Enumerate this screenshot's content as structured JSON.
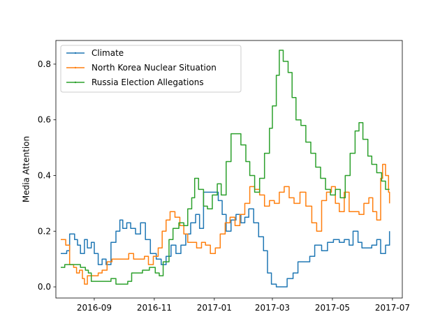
{
  "chart_data": {
    "type": "line",
    "title": "",
    "xlabel": "",
    "ylabel": "Media Attention",
    "x_range": [
      "2016-07-24",
      "2017-07-11"
    ],
    "ylim": [
      -0.04,
      0.885
    ],
    "x_ticks": [
      {
        "date": "2016-09-01",
        "label": "2016-09"
      },
      {
        "date": "2016-11-01",
        "label": "2016-11"
      },
      {
        "date": "2017-01-01",
        "label": "2017-01"
      },
      {
        "date": "2017-03-01",
        "label": "2017-03"
      },
      {
        "date": "2017-05-01",
        "label": "2017-05"
      },
      {
        "date": "2017-07-01",
        "label": "2017-07"
      }
    ],
    "y_ticks": [
      {
        "value": 0.0,
        "label": "0.0"
      },
      {
        "value": 0.2,
        "label": "0.2"
      },
      {
        "value": 0.4,
        "label": "0.4"
      },
      {
        "value": 0.6,
        "label": "0.6"
      },
      {
        "value": 0.8,
        "label": "0.8"
      }
    ],
    "grid": false,
    "legend_position": "top-left",
    "series": [
      {
        "name": "Climate",
        "color": "#1f77b4",
        "points": [
          [
            "2016-07-29",
            0.12
          ],
          [
            "2016-08-04",
            0.13
          ],
          [
            "2016-08-07",
            0.19
          ],
          [
            "2016-08-12",
            0.17
          ],
          [
            "2016-08-15",
            0.15
          ],
          [
            "2016-08-18",
            0.12
          ],
          [
            "2016-08-22",
            0.17
          ],
          [
            "2016-08-25",
            0.14
          ],
          [
            "2016-08-29",
            0.16
          ],
          [
            "2016-09-01",
            0.12
          ],
          [
            "2016-09-05",
            0.08
          ],
          [
            "2016-09-09",
            0.1
          ],
          [
            "2016-09-13",
            0.08
          ],
          [
            "2016-09-18",
            0.16
          ],
          [
            "2016-09-23",
            0.2
          ],
          [
            "2016-09-27",
            0.24
          ],
          [
            "2016-09-30",
            0.21
          ],
          [
            "2016-10-04",
            0.23
          ],
          [
            "2016-10-08",
            0.21
          ],
          [
            "2016-10-13",
            0.19
          ],
          [
            "2016-10-18",
            0.23
          ],
          [
            "2016-10-23",
            0.17
          ],
          [
            "2016-10-28",
            0.12
          ],
          [
            "2016-11-03",
            0.1
          ],
          [
            "2016-11-08",
            0.08
          ],
          [
            "2016-11-13",
            0.11
          ],
          [
            "2016-11-18",
            0.15
          ],
          [
            "2016-11-23",
            0.12
          ],
          [
            "2016-11-28",
            0.15
          ],
          [
            "2016-12-03",
            0.19
          ],
          [
            "2016-12-08",
            0.23
          ],
          [
            "2016-12-13",
            0.26
          ],
          [
            "2016-12-17",
            0.21
          ],
          [
            "2016-12-21",
            0.34
          ],
          [
            "2016-12-27",
            0.34
          ],
          [
            "2017-01-01",
            0.34
          ],
          [
            "2017-01-05",
            0.31
          ],
          [
            "2017-01-09",
            0.26
          ],
          [
            "2017-01-13",
            0.2
          ],
          [
            "2017-01-18",
            0.24
          ],
          [
            "2017-01-23",
            0.26
          ],
          [
            "2017-01-28",
            0.23
          ],
          [
            "2017-02-01",
            0.25
          ],
          [
            "2017-02-05",
            0.28
          ],
          [
            "2017-02-10",
            0.23
          ],
          [
            "2017-02-15",
            0.18
          ],
          [
            "2017-02-20",
            0.13
          ],
          [
            "2017-02-24",
            0.05
          ],
          [
            "2017-02-28",
            0.01
          ],
          [
            "2017-03-05",
            0.0
          ],
          [
            "2017-03-12",
            0.0
          ],
          [
            "2017-03-16",
            0.03
          ],
          [
            "2017-03-22",
            0.05
          ],
          [
            "2017-03-27",
            0.09
          ],
          [
            "2017-04-03",
            0.09
          ],
          [
            "2017-04-08",
            0.11
          ],
          [
            "2017-04-13",
            0.15
          ],
          [
            "2017-04-20",
            0.13
          ],
          [
            "2017-04-26",
            0.16
          ],
          [
            "2017-05-02",
            0.17
          ],
          [
            "2017-05-08",
            0.16
          ],
          [
            "2017-05-13",
            0.17
          ],
          [
            "2017-05-18",
            0.15
          ],
          [
            "2017-05-22",
            0.2
          ],
          [
            "2017-05-27",
            0.16
          ],
          [
            "2017-05-31",
            0.14
          ],
          [
            "2017-06-05",
            0.14
          ],
          [
            "2017-06-10",
            0.15
          ],
          [
            "2017-06-15",
            0.17
          ],
          [
            "2017-06-19",
            0.12
          ],
          [
            "2017-06-24",
            0.15
          ],
          [
            "2017-06-28",
            0.2
          ]
        ]
      },
      {
        "name": "North Korea Nuclear Situation",
        "color": "#ff7f0e",
        "points": [
          [
            "2016-07-29",
            0.17
          ],
          [
            "2016-08-03",
            0.15
          ],
          [
            "2016-08-07",
            0.08
          ],
          [
            "2016-08-11",
            0.07
          ],
          [
            "2016-08-14",
            0.05
          ],
          [
            "2016-08-17",
            0.06
          ],
          [
            "2016-08-20",
            0.03
          ],
          [
            "2016-08-22",
            0.01
          ],
          [
            "2016-08-25",
            0.04
          ],
          [
            "2016-09-01",
            0.04
          ],
          [
            "2016-09-05",
            0.05
          ],
          [
            "2016-09-09",
            0.06
          ],
          [
            "2016-09-14",
            0.09
          ],
          [
            "2016-09-19",
            0.1
          ],
          [
            "2016-09-25",
            0.1
          ],
          [
            "2016-10-01",
            0.1
          ],
          [
            "2016-10-06",
            0.12
          ],
          [
            "2016-10-11",
            0.1
          ],
          [
            "2016-10-17",
            0.1
          ],
          [
            "2016-10-22",
            0.11
          ],
          [
            "2016-10-26",
            0.08
          ],
          [
            "2016-10-31",
            0.11
          ],
          [
            "2016-11-05",
            0.14
          ],
          [
            "2016-11-09",
            0.2
          ],
          [
            "2016-11-13",
            0.24
          ],
          [
            "2016-11-17",
            0.27
          ],
          [
            "2016-11-22",
            0.25
          ],
          [
            "2016-11-27",
            0.22
          ],
          [
            "2016-12-01",
            0.19
          ],
          [
            "2016-12-05",
            0.16
          ],
          [
            "2016-12-10",
            0.16
          ],
          [
            "2016-12-14",
            0.14
          ],
          [
            "2016-12-19",
            0.16
          ],
          [
            "2016-12-23",
            0.15
          ],
          [
            "2016-12-28",
            0.12
          ],
          [
            "2017-01-02",
            0.14
          ],
          [
            "2017-01-07",
            0.19
          ],
          [
            "2017-01-12",
            0.23
          ],
          [
            "2017-01-17",
            0.25
          ],
          [
            "2017-01-22",
            0.22
          ],
          [
            "2017-01-27",
            0.26
          ],
          [
            "2017-02-01",
            0.3
          ],
          [
            "2017-02-06",
            0.36
          ],
          [
            "2017-02-11",
            0.35
          ],
          [
            "2017-02-16",
            0.33
          ],
          [
            "2017-02-21",
            0.29
          ],
          [
            "2017-02-26",
            0.31
          ],
          [
            "2017-03-03",
            0.3
          ],
          [
            "2017-03-08",
            0.34
          ],
          [
            "2017-03-13",
            0.36
          ],
          [
            "2017-03-18",
            0.32
          ],
          [
            "2017-03-23",
            0.3
          ],
          [
            "2017-03-29",
            0.34
          ],
          [
            "2017-04-04",
            0.29
          ],
          [
            "2017-04-10",
            0.23
          ],
          [
            "2017-04-15",
            0.2
          ],
          [
            "2017-04-20",
            0.31
          ],
          [
            "2017-04-25",
            0.34
          ],
          [
            "2017-04-30",
            0.36
          ],
          [
            "2017-05-04",
            0.3
          ],
          [
            "2017-05-08",
            0.27
          ],
          [
            "2017-05-13",
            0.34
          ],
          [
            "2017-05-18",
            0.27
          ],
          [
            "2017-05-23",
            0.27
          ],
          [
            "2017-05-28",
            0.26
          ],
          [
            "2017-06-02",
            0.3
          ],
          [
            "2017-06-07",
            0.32
          ],
          [
            "2017-06-11",
            0.27
          ],
          [
            "2017-06-15",
            0.24
          ],
          [
            "2017-06-19",
            0.39
          ],
          [
            "2017-06-21",
            0.44
          ],
          [
            "2017-06-24",
            0.4
          ],
          [
            "2017-06-27",
            0.34
          ],
          [
            "2017-06-28",
            0.3
          ]
        ]
      },
      {
        "name": "Russia Election Allegations",
        "color": "#2ca02c",
        "points": [
          [
            "2016-07-29",
            0.07
          ],
          [
            "2016-08-02",
            0.08
          ],
          [
            "2016-08-10",
            0.08
          ],
          [
            "2016-08-18",
            0.07
          ],
          [
            "2016-08-23",
            0.06
          ],
          [
            "2016-08-26",
            0.05
          ],
          [
            "2016-08-29",
            0.02
          ],
          [
            "2016-09-10",
            0.02
          ],
          [
            "2016-09-18",
            0.03
          ],
          [
            "2016-09-23",
            0.01
          ],
          [
            "2016-10-05",
            0.02
          ],
          [
            "2016-10-09",
            0.05
          ],
          [
            "2016-10-20",
            0.06
          ],
          [
            "2016-10-27",
            0.07
          ],
          [
            "2016-11-02",
            0.05
          ],
          [
            "2016-11-06",
            0.04
          ],
          [
            "2016-11-10",
            0.09
          ],
          [
            "2016-11-16",
            0.17
          ],
          [
            "2016-11-20",
            0.21
          ],
          [
            "2016-11-26",
            0.23
          ],
          [
            "2016-12-01",
            0.22
          ],
          [
            "2016-12-05",
            0.28
          ],
          [
            "2016-12-09",
            0.32
          ],
          [
            "2016-12-12",
            0.39
          ],
          [
            "2016-12-16",
            0.35
          ],
          [
            "2016-12-21",
            0.29
          ],
          [
            "2016-12-25",
            0.28
          ],
          [
            "2016-12-30",
            0.33
          ],
          [
            "2017-01-04",
            0.37
          ],
          [
            "2017-01-08",
            0.33
          ],
          [
            "2017-01-13",
            0.45
          ],
          [
            "2017-01-18",
            0.55
          ],
          [
            "2017-01-23",
            0.55
          ],
          [
            "2017-01-28",
            0.51
          ],
          [
            "2017-02-02",
            0.45
          ],
          [
            "2017-02-06",
            0.4
          ],
          [
            "2017-02-11",
            0.34
          ],
          [
            "2017-02-16",
            0.39
          ],
          [
            "2017-02-21",
            0.48
          ],
          [
            "2017-02-26",
            0.57
          ],
          [
            "2017-03-01",
            0.65
          ],
          [
            "2017-03-05",
            0.76
          ],
          [
            "2017-03-08",
            0.85
          ],
          [
            "2017-03-12",
            0.81
          ],
          [
            "2017-03-17",
            0.77
          ],
          [
            "2017-03-21",
            0.68
          ],
          [
            "2017-03-25",
            0.6
          ],
          [
            "2017-03-30",
            0.58
          ],
          [
            "2017-04-04",
            0.52
          ],
          [
            "2017-04-09",
            0.48
          ],
          [
            "2017-04-14",
            0.43
          ],
          [
            "2017-04-19",
            0.39
          ],
          [
            "2017-04-24",
            0.35
          ],
          [
            "2017-04-29",
            0.33
          ],
          [
            "2017-05-04",
            0.35
          ],
          [
            "2017-05-09",
            0.32
          ],
          [
            "2017-05-14",
            0.4
          ],
          [
            "2017-05-19",
            0.48
          ],
          [
            "2017-05-24",
            0.56
          ],
          [
            "2017-05-28",
            0.59
          ],
          [
            "2017-06-01",
            0.53
          ],
          [
            "2017-06-06",
            0.47
          ],
          [
            "2017-06-10",
            0.44
          ],
          [
            "2017-06-15",
            0.41
          ],
          [
            "2017-06-20",
            0.38
          ],
          [
            "2017-06-24",
            0.35
          ],
          [
            "2017-06-28",
            0.35
          ]
        ]
      }
    ]
  }
}
